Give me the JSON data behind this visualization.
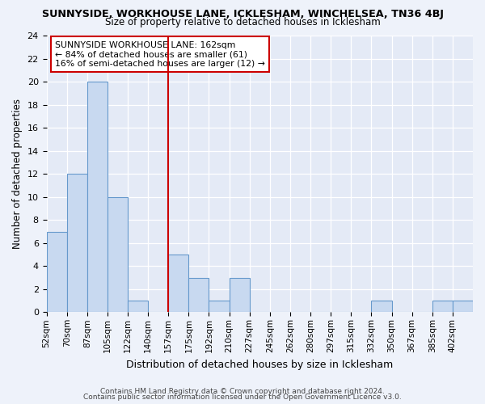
{
  "title": "SUNNYSIDE, WORKHOUSE LANE, ICKLESHAM, WINCHELSEA, TN36 4BJ",
  "subtitle": "Size of property relative to detached houses in Icklesham",
  "xlabel": "Distribution of detached houses by size in Icklesham",
  "ylabel": "Number of detached properties",
  "bin_labels": [
    "52sqm",
    "70sqm",
    "87sqm",
    "105sqm",
    "122sqm",
    "140sqm",
    "157sqm",
    "175sqm",
    "192sqm",
    "210sqm",
    "227sqm",
    "245sqm",
    "262sqm",
    "280sqm",
    "297sqm",
    "315sqm",
    "332sqm",
    "350sqm",
    "367sqm",
    "385sqm",
    "402sqm"
  ],
  "bar_values": [
    7,
    12,
    20,
    10,
    1,
    0,
    5,
    3,
    1,
    3,
    0,
    0,
    0,
    0,
    0,
    0,
    1,
    0,
    0,
    1,
    1
  ],
  "bar_color": "#c8d9f0",
  "bar_edge_color": "#6699cc",
  "vline_color": "#cc0000",
  "vline_bin_index": 6,
  "ylim": [
    0,
    24
  ],
  "yticks": [
    0,
    2,
    4,
    6,
    8,
    10,
    12,
    14,
    16,
    18,
    20,
    22,
    24
  ],
  "annotation_title": "SUNNYSIDE WORKHOUSE LANE: 162sqm",
  "annotation_line1": "← 84% of detached houses are smaller (61)",
  "annotation_line2": "16% of semi-detached houses are larger (12) →",
  "annotation_box_color": "#ffffff",
  "annotation_box_edge": "#cc0000",
  "footer1": "Contains HM Land Registry data © Crown copyright and database right 2024.",
  "footer2": "Contains public sector information licensed under the Open Government Licence v3.0.",
  "bg_color": "#eef2fa",
  "plot_bg_color": "#e4eaf6"
}
